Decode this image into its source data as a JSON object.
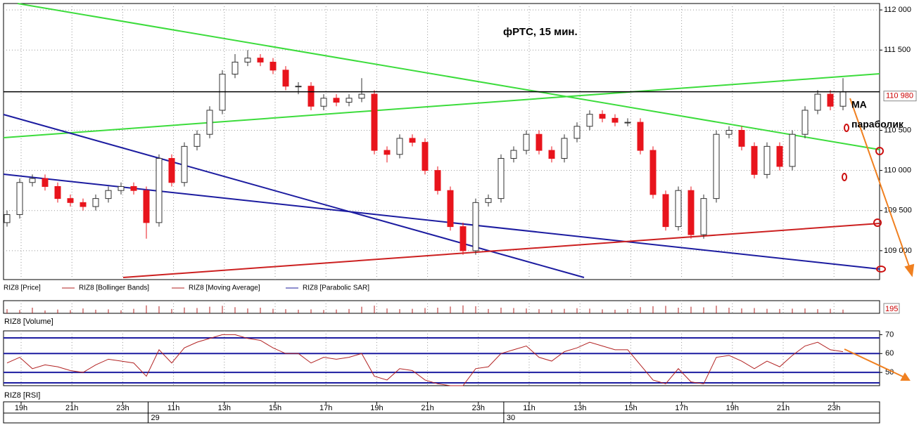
{
  "chart_data": [
    {
      "type": "candlestick",
      "title": "фРТС, 15 мин.",
      "candles": [
        [
          109350,
          109500,
          109300,
          109450
        ],
        [
          109450,
          109900,
          109400,
          109850
        ],
        [
          109850,
          109950,
          109800,
          109900
        ],
        [
          109900,
          109950,
          109750,
          109800
        ],
        [
          109800,
          109850,
          109600,
          109650
        ],
        [
          109650,
          109700,
          109550,
          109600
        ],
        [
          109600,
          109650,
          109500,
          109550
        ],
        [
          109550,
          109700,
          109500,
          109650
        ],
        [
          109650,
          109800,
          109600,
          109750
        ],
        [
          109750,
          109850,
          109700,
          109800
        ],
        [
          109800,
          109850,
          109700,
          109750
        ],
        [
          109750,
          109800,
          109150,
          109350
        ],
        [
          109350,
          110200,
          109300,
          110150
        ],
        [
          110150,
          110200,
          109800,
          109850
        ],
        [
          109850,
          110350,
          109800,
          110300
        ],
        [
          110300,
          110500,
          110250,
          110450
        ],
        [
          110450,
          110800,
          110400,
          110750
        ],
        [
          110750,
          111250,
          110700,
          111200
        ],
        [
          111200,
          111450,
          111150,
          111350
        ],
        [
          111350,
          111500,
          111300,
          111400
        ],
        [
          111400,
          111450,
          111300,
          111350
        ],
        [
          111350,
          111400,
          111200,
          111250
        ],
        [
          111250,
          111300,
          111000,
          111050
        ],
        [
          111050,
          111100,
          110950,
          111050
        ],
        [
          111050,
          111100,
          110750,
          110800
        ],
        [
          110800,
          110950,
          110750,
          110900
        ],
        [
          110900,
          110950,
          110800,
          110850
        ],
        [
          110850,
          110950,
          110800,
          110900
        ],
        [
          110900,
          111150,
          110850,
          110950
        ],
        [
          110950,
          111000,
          110200,
          110250
        ],
        [
          110250,
          110300,
          110100,
          110200
        ],
        [
          110200,
          110450,
          110150,
          110400
        ],
        [
          110400,
          110450,
          110300,
          110350
        ],
        [
          110350,
          110400,
          109950,
          110000
        ],
        [
          110000,
          110050,
          109700,
          109750
        ],
        [
          109750,
          109800,
          109250,
          109300
        ],
        [
          109300,
          109350,
          108950,
          109000
        ],
        [
          109000,
          109650,
          108950,
          109600
        ],
        [
          109600,
          109700,
          109550,
          109650
        ],
        [
          109650,
          110200,
          109600,
          110150
        ],
        [
          110150,
          110300,
          110100,
          110250
        ],
        [
          110250,
          110500,
          110200,
          110450
        ],
        [
          110450,
          110500,
          110200,
          110250
        ],
        [
          110250,
          110300,
          110100,
          110150
        ],
        [
          110150,
          110450,
          110100,
          110400
        ],
        [
          110400,
          110600,
          110350,
          110550
        ],
        [
          110550,
          110750,
          110500,
          110700
        ],
        [
          110700,
          110750,
          110600,
          110650
        ],
        [
          110650,
          110700,
          110550,
          110600
        ],
        [
          110600,
          110650,
          110550,
          110600
        ],
        [
          110600,
          110650,
          110200,
          110250
        ],
        [
          110250,
          110300,
          109650,
          109700
        ],
        [
          109700,
          109750,
          109250,
          109300
        ],
        [
          109300,
          109800,
          109250,
          109750
        ],
        [
          109750,
          109800,
          109150,
          109200
        ],
        [
          109200,
          109700,
          109150,
          109650
        ],
        [
          109650,
          110500,
          109600,
          110450
        ],
        [
          110450,
          110550,
          110400,
          110500
        ],
        [
          110500,
          110550,
          110250,
          110300
        ],
        [
          110300,
          110350,
          109900,
          109950
        ],
        [
          109950,
          110350,
          109900,
          110300
        ],
        [
          110300,
          110350,
          110000,
          110050
        ],
        [
          110050,
          110500,
          110000,
          110450
        ],
        [
          110450,
          110800,
          110400,
          110750
        ],
        [
          110750,
          111000,
          110700,
          110950
        ],
        [
          110950,
          111000,
          110750,
          110800
        ],
        [
          110800,
          111150,
          110750,
          110980
        ]
      ],
      "up_color": "#ffffff",
      "down_color": "#e8141c",
      "ylim": [
        108640,
        112080
      ],
      "yticks": [
        {
          "value": 109000,
          "label": "109 000"
        },
        {
          "value": 109500,
          "label": "109 500"
        },
        {
          "value": 110000,
          "label": "110 000"
        },
        {
          "value": 110500,
          "label": "110 500"
        },
        {
          "value": 111500,
          "label": "111 500"
        },
        {
          "value": 112000,
          "label": "112 000"
        }
      ],
      "grid": true,
      "price_line": {
        "value": 110980,
        "label": "110 980"
      },
      "legend": [
        "RIZ8 [Price]",
        "RIZ8 [Bollinger Bands]",
        "RIZ8 [Moving Average]",
        "RIZ8 [Parabolic SAR]"
      ],
      "legend_colors": [
        "#b22222",
        "#b22222",
        "#b22222",
        "#1c1c9c"
      ],
      "annotations": [
        "МА",
        "параболик"
      ]
    },
    {
      "type": "bar",
      "name": "RIZ8 [Volume]",
      "color": "#b22222",
      "values": [
        220,
        180,
        300,
        150,
        200,
        170,
        260,
        190,
        210,
        160,
        240,
        420,
        380,
        230,
        310,
        280,
        350,
        400,
        330,
        260,
        300,
        240,
        220,
        190,
        210,
        180,
        200,
        230,
        350,
        410,
        260,
        220,
        240,
        280,
        300,
        360,
        420,
        380,
        230,
        300,
        280,
        260,
        220,
        200,
        240,
        270,
        250,
        210,
        190,
        230,
        330,
        380,
        400,
        300,
        350,
        320,
        410,
        300,
        260,
        280,
        240,
        230,
        250,
        260,
        220,
        240,
        195
      ],
      "ylim": [
        0,
        600
      ]
    },
    {
      "type": "line",
      "name": "RIZ8 [RSI]",
      "color": "#b22222",
      "values": [
        55,
        58,
        52,
        54,
        53,
        51,
        50,
        54,
        57,
        56,
        55,
        48,
        62,
        55,
        63,
        66,
        68,
        70,
        70,
        68,
        67,
        63,
        60,
        60,
        55,
        58,
        57,
        58,
        60,
        48,
        46,
        52,
        51,
        46,
        44,
        43,
        43,
        52,
        53,
        60,
        62,
        64,
        58,
        56,
        61,
        63,
        66,
        64,
        62,
        62,
        54,
        46,
        44,
        52,
        45,
        44,
        58,
        59,
        56,
        52,
        56,
        53,
        59,
        64,
        66,
        62,
        61
      ],
      "ylim": [
        43,
        72
      ],
      "yticks": [
        50,
        60,
        70
      ],
      "grid": true
    }
  ],
  "time_axis": {
    "labels": [
      "19h",
      "21h",
      "23h",
      "11h",
      "13h",
      "15h",
      "17h",
      "19h",
      "21h",
      "23h",
      "11h",
      "13h",
      "15h",
      "17h",
      "19h",
      "21h",
      "23h"
    ],
    "days": [
      "29",
      "30"
    ]
  }
}
